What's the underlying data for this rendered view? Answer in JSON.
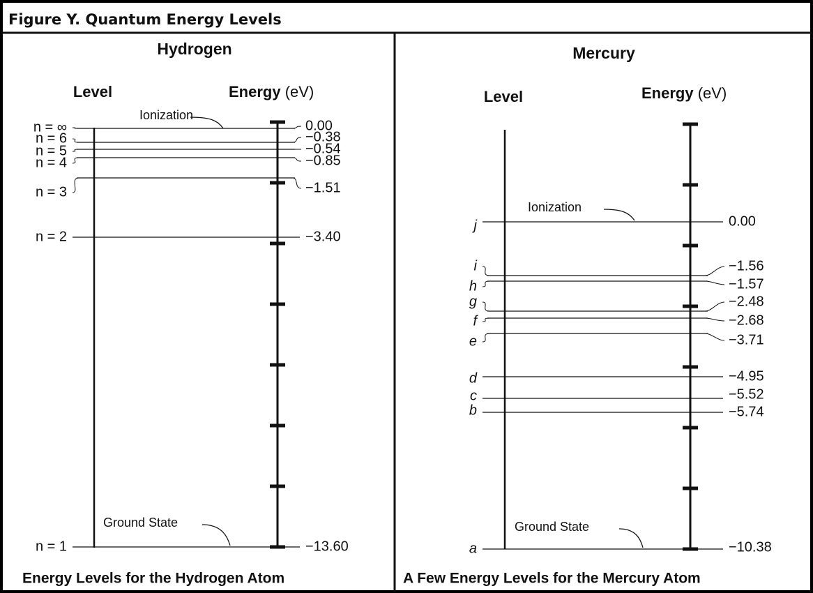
{
  "header": {
    "title": "Figure Y.  Quantum Energy Levels"
  },
  "panels": [
    {
      "title": "Hydrogen",
      "level_heading": "Level",
      "energy_heading": "Energy",
      "energy_unit": "(eV)",
      "ionization": "Ionization",
      "ground": "Ground State",
      "caption": "Energy Levels for the Hydrogen Atom",
      "levels": [
        {
          "label": "n = ∞",
          "energy": "0.00"
        },
        {
          "label": "n = 6",
          "energy": "−0.38"
        },
        {
          "label": "n = 5",
          "energy": "−0.54"
        },
        {
          "label": "n = 4",
          "energy": "−0.85"
        },
        {
          "label": "n = 3",
          "energy": "−1.51"
        },
        {
          "label": "n = 2",
          "energy": "−3.40"
        },
        {
          "label": "n = 1",
          "energy": "−13.60"
        }
      ]
    },
    {
      "title": "Mercury",
      "level_heading": "Level",
      "energy_heading": "Energy",
      "energy_unit": "(eV)",
      "ionization": "Ionization",
      "ground": "Ground State",
      "caption": "A Few Energy Levels for the Mercury Atom",
      "levels": [
        {
          "label": "j",
          "energy": "0.00"
        },
        {
          "label": "i",
          "energy": "−1.56"
        },
        {
          "label": "h",
          "energy": "−1.57"
        },
        {
          "label": "g",
          "energy": "−2.48"
        },
        {
          "label": "f",
          "energy": "−2.68"
        },
        {
          "label": "e",
          "energy": "−3.71"
        },
        {
          "label": "d",
          "energy": "−4.95"
        },
        {
          "label": "c",
          "energy": "−5.52"
        },
        {
          "label": "b",
          "energy": "−5.74"
        },
        {
          "label": "a",
          "energy": "−10.38"
        }
      ]
    }
  ]
}
